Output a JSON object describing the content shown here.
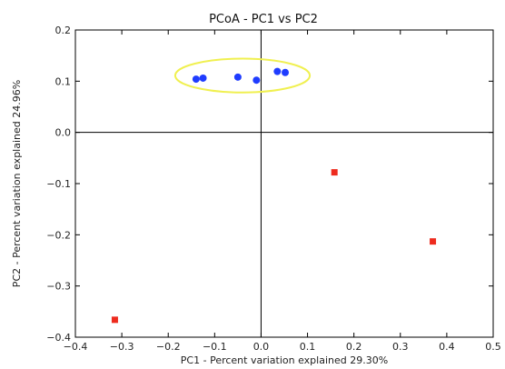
{
  "chart_data": {
    "type": "scatter",
    "title": "PCoA - PC1 vs PC2",
    "xlabel": "PC1 - Percent variation explained 29.30%",
    "ylabel": "PC2 - Percent variation explained 24.96%",
    "xlim": [
      -0.4,
      0.5
    ],
    "ylim": [
      -0.4,
      0.2
    ],
    "xticks": [
      "−0.4",
      "−0.3",
      "−0.2",
      "−0.1",
      "0.0",
      "0.1",
      "0.2",
      "0.3",
      "0.4",
      "0.5"
    ],
    "yticks": [
      "−0.4",
      "−0.3",
      "−0.2",
      "−0.1",
      "0.0",
      "0.1",
      "0.2"
    ],
    "xtick_values": [
      -0.4,
      -0.3,
      -0.2,
      -0.1,
      0.0,
      0.1,
      0.2,
      0.3,
      0.4,
      0.5
    ],
    "ytick_values": [
      -0.4,
      -0.3,
      -0.2,
      -0.1,
      0.0,
      0.1,
      0.2
    ],
    "grid": false,
    "zero_lines": true,
    "series": [
      {
        "marker": "circle",
        "color": "#1f3cff",
        "points": [
          {
            "x": -0.14,
            "y": 0.104
          },
          {
            "x": -0.125,
            "y": 0.106
          },
          {
            "x": -0.05,
            "y": 0.108
          },
          {
            "x": -0.01,
            "y": 0.102
          },
          {
            "x": 0.035,
            "y": 0.119
          },
          {
            "x": 0.052,
            "y": 0.117
          }
        ]
      },
      {
        "marker": "square",
        "color": "#ee2b1e",
        "points": [
          {
            "x": -0.315,
            "y": -0.366
          },
          {
            "x": 0.158,
            "y": -0.078
          },
          {
            "x": 0.37,
            "y": -0.213
          }
        ]
      }
    ],
    "annotation": {
      "shape": "ellipse",
      "color": "#f0f050",
      "center": {
        "x": -0.04,
        "y": 0.111
      },
      "rx_data": 0.145,
      "ry_data": 0.033
    }
  }
}
